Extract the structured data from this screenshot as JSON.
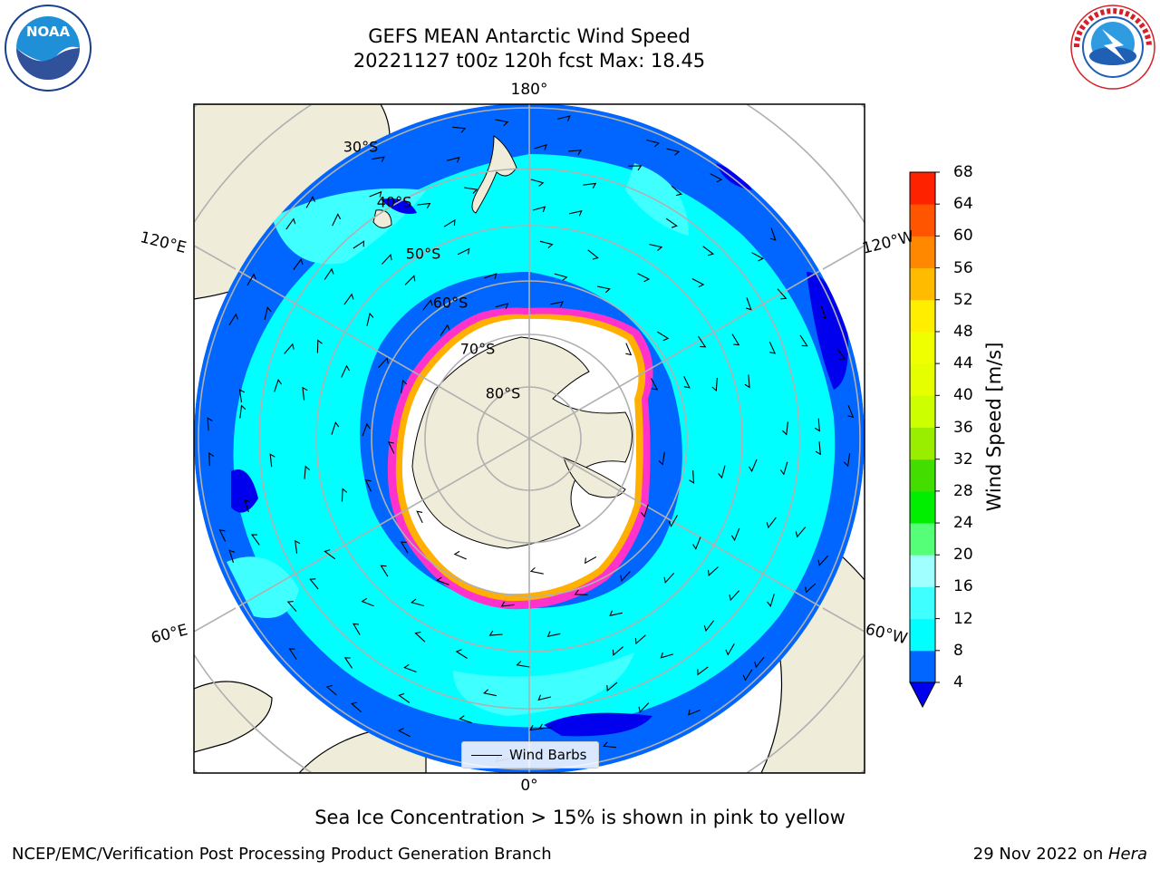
{
  "header": {
    "title_line1": "GEFS MEAN Antarctic Wind Speed",
    "title_line2": "20221127 t00z 120h fcst   Max: 18.45"
  },
  "logos": {
    "left": {
      "name": "noaa-logo",
      "text": "NOAA"
    },
    "right": {
      "name": "national-weather-service-logo",
      "text": "NATIONAL WEATHER SERVICE"
    }
  },
  "map": {
    "projection": "south-polar-stereographic",
    "longitude_labels": [
      "180°",
      "120°E",
      "120°W",
      "60°E",
      "60°W",
      "0°"
    ],
    "latitude_labels": [
      "30°S",
      "40°S",
      "50°S",
      "60°S",
      "70°S",
      "80°S"
    ],
    "legend_label": "Wind Barbs",
    "colors": {
      "land": "#efecd9",
      "ice_white": "#ffffff",
      "ice_edge": [
        "#ff33cc",
        "#ffb000",
        "#ffe000"
      ],
      "wind_4_8": "#0066ff",
      "wind_8_12": "#00ffff",
      "wind_12_16": "#40ffff",
      "wind_16_20": "#a0ffff",
      "wind_below_4": "#0000ee"
    }
  },
  "colorbar": {
    "label": "Wind Speed [m/s]",
    "ticks": [
      "4",
      "8",
      "12",
      "16",
      "20",
      "24",
      "28",
      "32",
      "36",
      "40",
      "44",
      "48",
      "52",
      "56",
      "60",
      "64",
      "68"
    ],
    "colors": [
      "#0066ff",
      "#00ffff",
      "#40ffff",
      "#a0ffff",
      "#55ff77",
      "#00ee00",
      "#44dd00",
      "#99ee00",
      "#ccff00",
      "#e6ff00",
      "#f0ff00",
      "#ffee00",
      "#ffbb00",
      "#ff8800",
      "#ff5500",
      "#ff2200"
    ],
    "extend_color": "#0000ee"
  },
  "notes": {
    "sea_ice": "Sea Ice Concentration > 15% is shown in pink to yellow"
  },
  "footer": {
    "credit_left": "NCEP/EMC/Verification Post Processing Product Generation Branch",
    "credit_right_prefix": "29 Nov 2022 on ",
    "credit_right_host": "Hera"
  }
}
